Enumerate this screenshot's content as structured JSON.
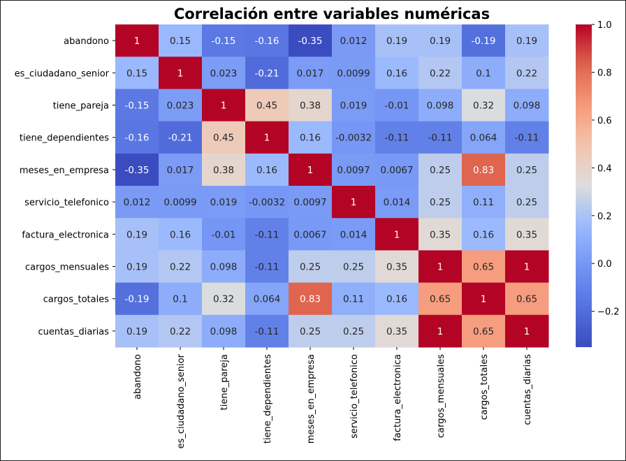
{
  "chart_data": {
    "type": "heatmap",
    "title": "Correlación entre variables numéricas",
    "xlabel": "",
    "ylabel": "",
    "variables": [
      "abandono",
      "es_ciudadano_senior",
      "tiene_pareja",
      "tiene_dependientes",
      "meses_en_empresa",
      "servicio_telefonico",
      "factura_electronica",
      "cargos_mensuales",
      "cargos_totales",
      "cuentas_diarias"
    ],
    "matrix": [
      [
        1,
        0.15,
        -0.15,
        -0.16,
        -0.35,
        0.012,
        0.19,
        0.19,
        -0.19,
        0.19
      ],
      [
        0.15,
        1,
        0.023,
        -0.21,
        0.017,
        0.0099,
        0.16,
        0.22,
        0.1,
        0.22
      ],
      [
        -0.15,
        0.023,
        1,
        0.45,
        0.38,
        0.019,
        -0.01,
        0.098,
        0.32,
        0.098
      ],
      [
        -0.16,
        -0.21,
        0.45,
        1,
        0.16,
        -0.0032,
        -0.11,
        -0.11,
        0.064,
        -0.11
      ],
      [
        -0.35,
        0.017,
        0.38,
        0.16,
        1,
        0.0097,
        0.0067,
        0.25,
        0.83,
        0.25
      ],
      [
        0.012,
        0.0099,
        0.019,
        -0.0032,
        0.0097,
        1,
        0.014,
        0.25,
        0.11,
        0.25
      ],
      [
        0.19,
        0.16,
        -0.01,
        -0.11,
        0.0067,
        0.014,
        1,
        0.35,
        0.16,
        0.35
      ],
      [
        0.19,
        0.22,
        0.098,
        -0.11,
        0.25,
        0.25,
        0.35,
        1,
        0.65,
        1
      ],
      [
        -0.19,
        0.1,
        0.32,
        0.064,
        0.83,
        0.11,
        0.16,
        0.65,
        1,
        0.65
      ],
      [
        0.19,
        0.22,
        0.098,
        -0.11,
        0.25,
        0.25,
        0.35,
        1,
        0.65,
        1
      ]
    ],
    "colormap": "coolwarm",
    "color_range": [
      -0.35,
      1.0
    ],
    "colorbar_ticks": [
      -0.2,
      0.0,
      0.2,
      0.4,
      0.6,
      0.8,
      1.0
    ],
    "colorbar_tick_labels": [
      "−0.2",
      "0.0",
      "0.2",
      "0.4",
      "0.6",
      "0.8",
      "1.0"
    ],
    "annotations": true
  }
}
